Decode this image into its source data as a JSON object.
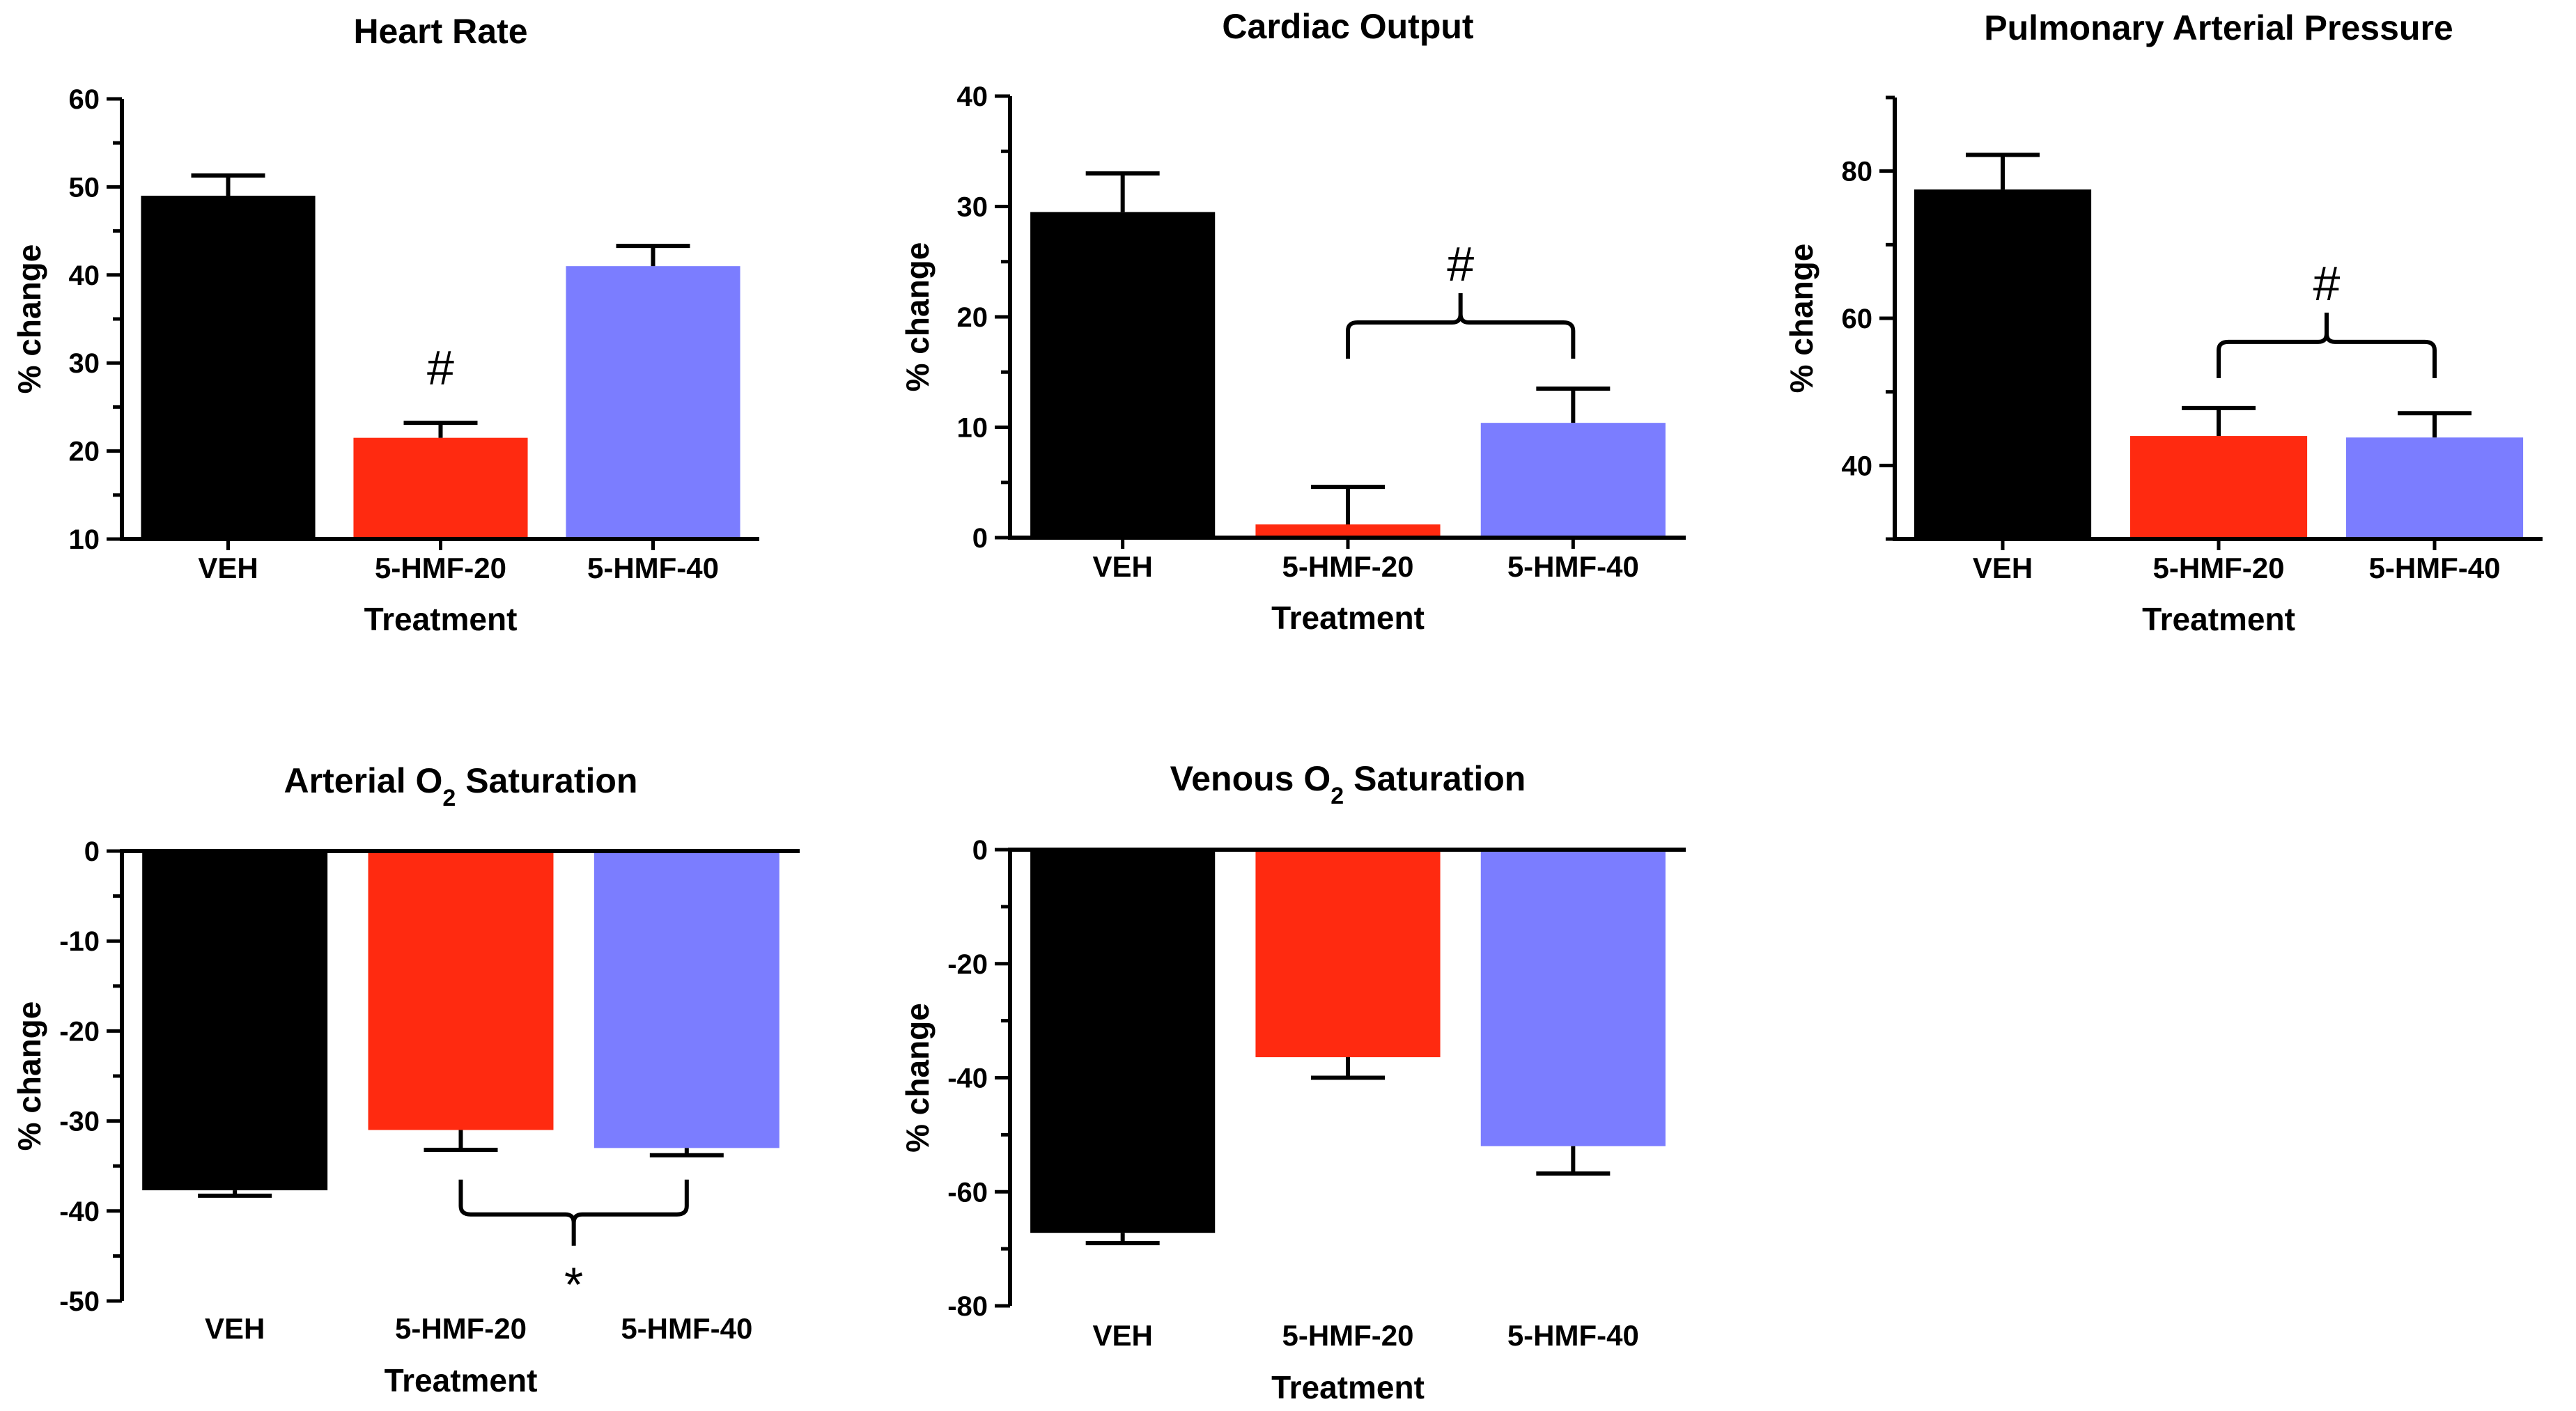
{
  "figure": {
    "colors": {
      "VEH": "#000000",
      "5-HMF-20": "#ff2a10",
      "5-HMF-40": "#7b7dff"
    },
    "charts": [
      {
        "type": "bar",
        "title": "Heart Rate",
        "title_parts": [
          "Heart Rate"
        ],
        "xlabel": "Treatment",
        "ylabel": "% change",
        "categories": [
          "VEH",
          "5-HMF-20",
          "5-HMF-40"
        ],
        "values": [
          49,
          21.5,
          41
        ],
        "errors": [
          2.3,
          1.7,
          2.3
        ],
        "ylim": [
          10,
          60
        ],
        "yticks": [
          10,
          20,
          30,
          40,
          50,
          60
        ],
        "annotations": [
          {
            "text": "#",
            "bars": [
              1
            ],
            "side": "above"
          }
        ]
      },
      {
        "type": "bar",
        "title": "Cardiac Output",
        "title_parts": [
          "Cardiac Output"
        ],
        "xlabel": "Treatment",
        "ylabel": "% change",
        "categories": [
          "VEH",
          "5-HMF-20",
          "5-HMF-40"
        ],
        "values": [
          29.5,
          1.2,
          10.4
        ],
        "errors": [
          3.5,
          3.4,
          3.1
        ],
        "ylim": [
          0,
          40
        ],
        "yticks": [
          0,
          10,
          20,
          30,
          40
        ],
        "annotations": [
          {
            "text": "#",
            "bars": [
              1,
              2
            ],
            "side": "above"
          }
        ]
      },
      {
        "type": "bar",
        "title": "Pulmonary Arterial Pressure",
        "title_parts": [
          "Pulmonary Arterial Pressure"
        ],
        "xlabel": "Treatment",
        "ylabel": "% change",
        "categories": [
          "VEH",
          "5-HMF-20",
          "5-HMF-40"
        ],
        "values": [
          77.5,
          44,
          43.8
        ],
        "errors": [
          4.7,
          3.8,
          3.3
        ],
        "ylim": [
          30,
          90
        ],
        "yticks": [
          40,
          60,
          80
        ],
        "annotations": [
          {
            "text": "#",
            "bars": [
              1,
              2
            ],
            "side": "above"
          }
        ]
      },
      {
        "type": "bar",
        "title": "Arterial O2 Saturation",
        "title_parts": [
          "Arterial O",
          "2",
          " Saturation"
        ],
        "xlabel": "Treatment",
        "ylabel": "% change",
        "categories": [
          "VEH",
          "5-HMF-20",
          "5-HMF-40"
        ],
        "values": [
          -37.7,
          -31,
          -33
        ],
        "errors": [
          0.6,
          2.2,
          0.8
        ],
        "ylim": [
          -50,
          0
        ],
        "yticks": [
          0,
          -10,
          -20,
          -30,
          -40,
          -50
        ],
        "annotations": [
          {
            "text": "*",
            "bars": [
              1,
              2
            ],
            "side": "below"
          }
        ]
      },
      {
        "type": "bar",
        "title": "Venous O2 Saturation",
        "title_parts": [
          "Venous O",
          "2",
          " Saturation"
        ],
        "xlabel": "Treatment",
        "ylabel": "% change",
        "categories": [
          "VEH",
          "5-HMF-20",
          "5-HMF-40"
        ],
        "values": [
          -67.2,
          -36.4,
          -52
        ],
        "errors": [
          1.8,
          3.6,
          4.8
        ],
        "ylim": [
          -80,
          0
        ],
        "yticks": [
          0,
          -20,
          -40,
          -60,
          -80
        ],
        "annotations": []
      }
    ]
  }
}
